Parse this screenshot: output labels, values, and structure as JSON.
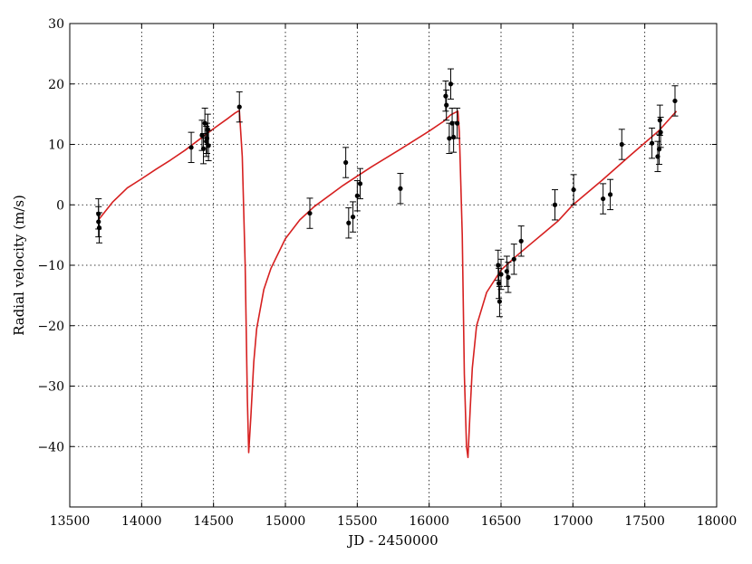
{
  "colors": {
    "model_curve": "#d62020",
    "data_points": "#000000",
    "background": "#ffffff"
  },
  "chart_data": {
    "type": "scatter",
    "title": "",
    "xlabel": "JD - 2450000",
    "ylabel": "Radial velocity (m/s)",
    "xlim": [
      13500,
      18000
    ],
    "ylim": [
      -50,
      30
    ],
    "xticks": [
      13500,
      14000,
      14500,
      15000,
      15500,
      16000,
      16500,
      17000,
      17500,
      18000
    ],
    "yticks": [
      -40,
      -30,
      -20,
      -10,
      0,
      10,
      20,
      30
    ],
    "xtick_labels": [
      "13500",
      "14000",
      "14500",
      "15000",
      "15500",
      "16000",
      "16500",
      "17000",
      "17500",
      "18000"
    ],
    "ytick_labels": [
      "−40",
      "−30",
      "−20",
      "−10",
      "0",
      "10",
      "20",
      "30"
    ],
    "grid": true,
    "series": [
      {
        "kind": "errorbar",
        "x": [
          13700,
          13700,
          13705,
          14345,
          14420,
          14430,
          14440,
          14450,
          14455,
          14460,
          14465,
          14680,
          15170,
          15420,
          15440,
          15470,
          15500,
          15520,
          15800,
          16115,
          16120,
          16140,
          16150,
          16160,
          16170,
          16195,
          16480,
          16485,
          16490,
          16500,
          16540,
          16550,
          16590,
          16640,
          16875,
          17005,
          17210,
          17260,
          17340,
          17550,
          17590,
          17600,
          17605,
          17610,
          17710
        ],
        "y": [
          -1.5,
          -2.8,
          -3.8,
          9.5,
          11.5,
          9.3,
          13.5,
          10.5,
          11,
          12.5,
          9.8,
          16.2,
          -1.4,
          7,
          -3,
          -2,
          1.5,
          3.5,
          2.7,
          18,
          16.5,
          11,
          20,
          13.5,
          11.2,
          13.5,
          -10,
          -13,
          -16,
          -11.5,
          -11,
          -12,
          -9,
          -6,
          0,
          2.5,
          1,
          1.7,
          10,
          10.2,
          8,
          9.2,
          14,
          12,
          17.2
        ],
        "yerr": [
          2.5,
          2.5,
          2.5,
          2.5,
          2.5,
          2.5,
          2.5,
          2.5,
          2.5,
          2.5,
          2.5,
          2.5,
          2.5,
          2.5,
          2.5,
          2.5,
          2.5,
          2.5,
          2.5,
          2.5,
          2.5,
          2.5,
          2.5,
          2.5,
          2.5,
          2.5,
          2.5,
          2.5,
          2.5,
          2.5,
          2.5,
          2.5,
          2.5,
          2.5,
          2.5,
          2.5,
          2.5,
          2.5,
          2.5,
          2.5,
          2.5,
          2.5,
          2.5,
          2.5,
          2.5
        ]
      },
      {
        "kind": "line",
        "x": [
          13700,
          13800,
          13900,
          14000,
          14100,
          14200,
          14300,
          14400,
          14500,
          14600,
          14650,
          14680,
          14700,
          14720,
          14735,
          14745,
          14760,
          14780,
          14800,
          14850,
          14900,
          15000,
          15100,
          15200,
          15400,
          15600,
          15800,
          16000,
          16100,
          16150,
          16200,
          16210,
          16230,
          16245,
          16260,
          16270,
          16285,
          16300,
          16330,
          16400,
          16500,
          16600,
          16700,
          16800,
          16900,
          17000,
          17200,
          17400,
          17600,
          17720
        ],
        "y": [
          -2.5,
          0.5,
          2.8,
          4.3,
          5.9,
          7.4,
          9,
          10.8,
          12.6,
          14.3,
          15.2,
          15.6,
          8,
          -10,
          -32,
          -41,
          -35,
          -26,
          -20.5,
          -14,
          -10.5,
          -5.6,
          -2.5,
          -0.3,
          3.2,
          6.3,
          9.2,
          12.2,
          13.8,
          14.9,
          15.5,
          12,
          -5,
          -28,
          -40,
          -41.8,
          -34,
          -27,
          -20,
          -14.5,
          -10.8,
          -8.6,
          -6.6,
          -4.6,
          -2.6,
          0,
          4,
          8.2,
          12.3,
          15.5
        ]
      }
    ]
  }
}
